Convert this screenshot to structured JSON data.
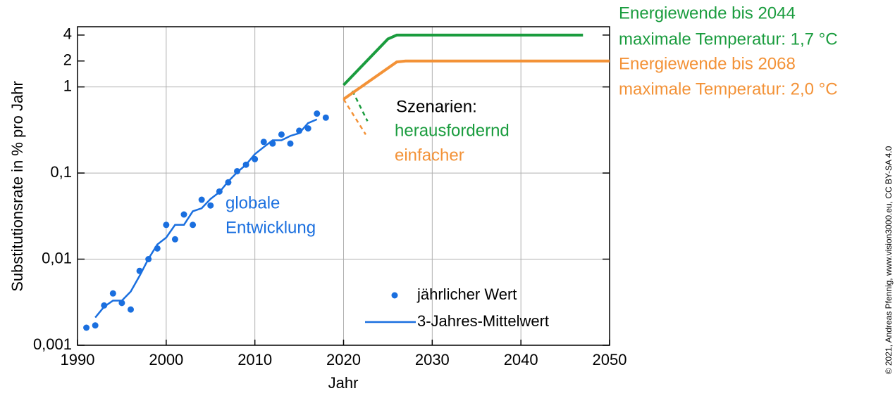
{
  "chart_data": {
    "type": "line",
    "x_label": "Jahr",
    "y_label": "Substitutionsrate in % pro Jahr",
    "xlim": [
      1990,
      2050
    ],
    "xticks": [
      1990,
      2000,
      2010,
      2020,
      2030,
      2040,
      2050
    ],
    "ylim": [
      0.001,
      5
    ],
    "yticks": [
      {
        "value": 0.001,
        "label": "0,001"
      },
      {
        "value": 0.01,
        "label": "0,01"
      },
      {
        "value": 0.1,
        "label": "0,1"
      },
      1,
      2,
      4
    ],
    "log_y": true,
    "grid": true,
    "legend": "lower right",
    "series": [
      {
        "name": "jährlicher Wert",
        "color": "#1a6fdf",
        "style": "markers",
        "x": [
          1991,
          1992,
          1993,
          1994,
          1995,
          1996,
          1997,
          1998,
          1999,
          2000,
          2001,
          2002,
          2003,
          2004,
          2005,
          2006,
          2007,
          2008,
          2009,
          2010,
          2011,
          2012,
          2013,
          2014,
          2015,
          2016,
          2017,
          2018
        ],
        "values": [
          0.0016,
          0.0017,
          0.0029,
          0.004,
          0.0031,
          0.0026,
          0.0073,
          0.01,
          0.0133,
          0.025,
          0.017,
          0.033,
          0.025,
          0.049,
          0.042,
          0.061,
          0.078,
          0.105,
          0.125,
          0.145,
          0.23,
          0.22,
          0.28,
          0.22,
          0.31,
          0.33,
          0.49,
          0.44
        ]
      },
      {
        "name": "3-Jahres-Mittelwert",
        "color": "#1a6fdf",
        "style": "line",
        "x": [
          1992,
          1993,
          1994,
          1995,
          1996,
          1997,
          1998,
          1999,
          2000,
          2001,
          2002,
          2003,
          2004,
          2005,
          2006,
          2007,
          2008,
          2009,
          2010,
          2011,
          2012,
          2013,
          2014,
          2015,
          2016,
          2017
        ],
        "values": [
          0.0021,
          0.0028,
          0.0033,
          0.0033,
          0.0042,
          0.0064,
          0.0101,
          0.0148,
          0.0178,
          0.025,
          0.025,
          0.036,
          0.039,
          0.05,
          0.06,
          0.08,
          0.102,
          0.125,
          0.166,
          0.2,
          0.24,
          0.24,
          0.27,
          0.29,
          0.38,
          0.42
        ]
      }
    ],
    "annotations": [
      "globale",
      "Entwicklung",
      "Szenarien:"
    ],
    "scenarios": [
      {
        "label": [
          "Energiewende bis 2044",
          "maximale Temperatur: 1,7 °C"
        ],
        "short": "herausfordernd",
        "color": "#1a9c3e",
        "x": [
          2020,
          2025,
          2026,
          2047
        ],
        "values": [
          1.05,
          3.6,
          4,
          4
        ],
        "dashed_x": [
          2021,
          2022.7
        ],
        "dashed_values": [
          0.9,
          0.4
        ]
      },
      {
        "label": [
          "Energiewende bis 2068",
          "maximale Temperatur: 2,0 °C"
        ],
        "short": "einfacher",
        "color": "#f39237",
        "x": [
          2020,
          2026,
          2027,
          2050
        ],
        "values": [
          0.72,
          1.95,
          2,
          2
        ],
        "dashed_x": [
          2020,
          2022.5
        ],
        "dashed_values": [
          0.72,
          0.28
        ]
      }
    ],
    "copyright": "© 2021, Andreas Pfennig, www.vision3000.eu, CC BY-SA 4.0"
  }
}
